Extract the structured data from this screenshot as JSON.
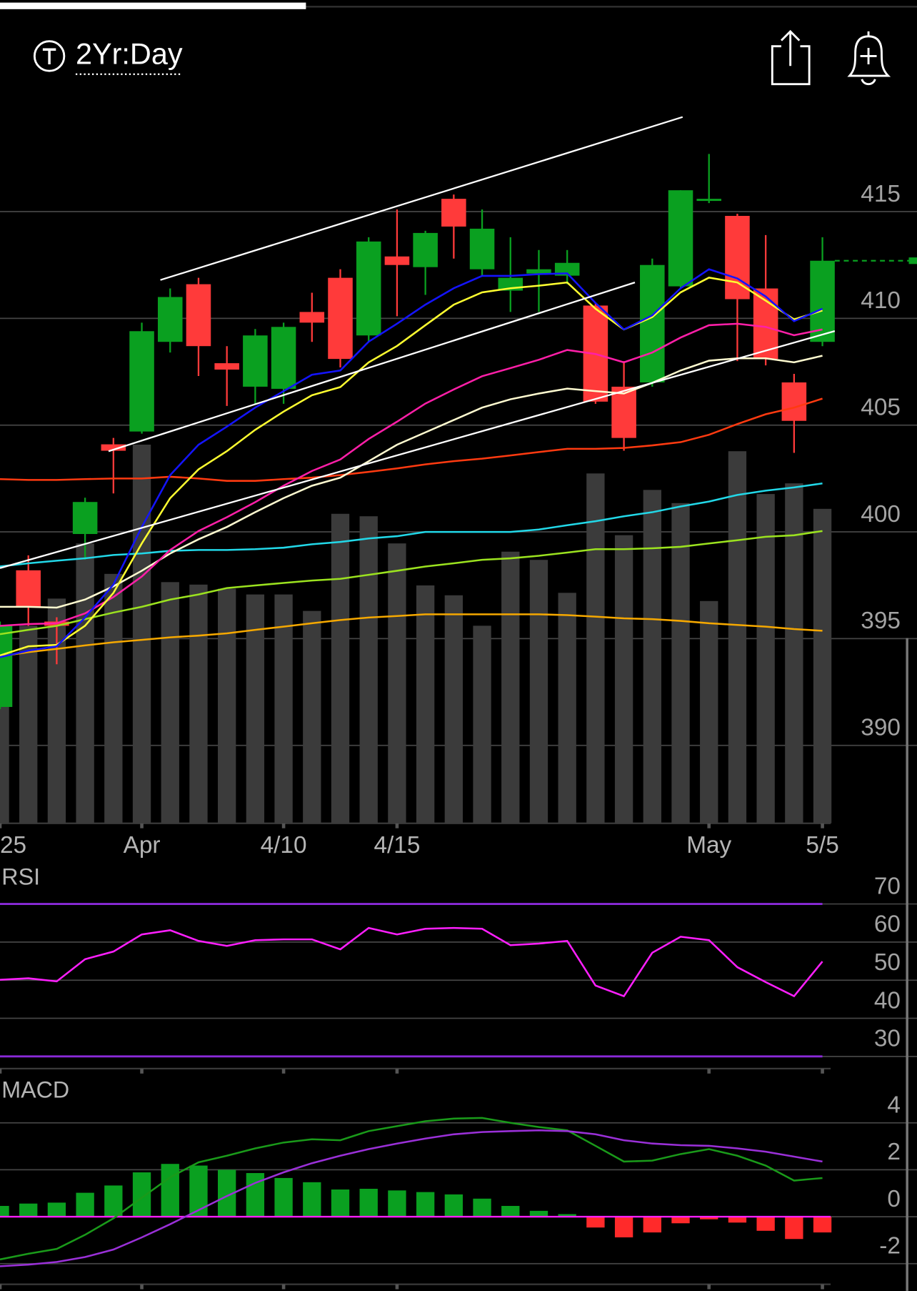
{
  "header": {
    "timeframe": "2Yr:Day"
  },
  "chart_data": [
    {
      "type": "candlestick",
      "categories": [
        "25",
        null,
        null,
        null,
        null,
        "Apr",
        null,
        null,
        null,
        null,
        "4/10",
        null,
        null,
        null,
        "4/15",
        null,
        null,
        null,
        null,
        null,
        null,
        null,
        null,
        null,
        null,
        "May",
        null,
        null,
        null,
        "5/5"
      ],
      "open": [
        391.8,
        398.2,
        395.8,
        399.9,
        404.1,
        404.7,
        408.9,
        411.6,
        407.9,
        406.8,
        406.7,
        410.3,
        411.9,
        409.2,
        412.9,
        412.4,
        415.6,
        412.3,
        411.3,
        412.1,
        412.0,
        410.6,
        406.8,
        407.0,
        411.5,
        415.5,
        414.8,
        411.4,
        407.0,
        408.9
      ],
      "high": [
        395.8,
        398.9,
        396.0,
        401.6,
        404.4,
        409.8,
        411.4,
        411.9,
        408.7,
        409.5,
        409.8,
        411.2,
        412.3,
        413.8,
        415.1,
        414.1,
        415.8,
        415.1,
        413.8,
        413.2,
        413.2,
        410.7,
        408.0,
        412.8,
        416.0,
        417.7,
        414.9,
        413.9,
        407.4,
        413.8
      ],
      "low": [
        391.7,
        395.6,
        393.8,
        398.7,
        401.8,
        404.6,
        408.4,
        407.3,
        405.9,
        406.0,
        406.0,
        408.9,
        407.7,
        408.9,
        410.1,
        411.1,
        412.8,
        412.0,
        410.3,
        410.3,
        411.6,
        406.0,
        403.8,
        406.8,
        411.4,
        415.4,
        408.0,
        407.8,
        403.7,
        408.7
      ],
      "close": [
        395.6,
        396.5,
        395.6,
        401.4,
        403.8,
        409.4,
        411.0,
        408.7,
        407.6,
        409.2,
        409.6,
        409.8,
        408.1,
        413.6,
        412.5,
        414.0,
        414.3,
        414.2,
        411.9,
        412.3,
        412.6,
        406.1,
        404.4,
        412.5,
        416.0,
        415.6,
        410.9,
        408.1,
        405.2,
        412.7
      ],
      "up_color": "#0aa020",
      "down_color": "#ff3a3a",
      "volume": {
        "values": [
          240,
          240,
          273,
          340,
          303,
          460,
          293,
          290,
          285,
          278,
          278,
          258,
          376,
          373,
          340,
          289,
          277,
          240,
          330,
          320,
          280,
          425,
          350,
          405,
          389,
          270,
          452,
          400,
          413,
          382
        ],
        "ylim": [
          0,
          900
        ],
        "color": "#3b3b3b"
      },
      "series": [
        {
          "color": "#f5a800",
          "values": [
            394.17,
            394.37,
            394.52,
            394.68,
            394.83,
            394.94,
            395.06,
            395.14,
            395.25,
            395.41,
            395.56,
            395.72,
            395.87,
            395.99,
            396.06,
            396.14,
            396.14,
            396.14,
            396.14,
            396.14,
            396.1,
            396.03,
            395.95,
            395.91,
            395.83,
            395.72,
            395.64,
            395.56,
            395.45,
            395.37
          ]
        },
        {
          "color": "#9be21f",
          "values": [
            395.21,
            395.41,
            395.6,
            395.91,
            396.22,
            396.49,
            396.83,
            397.07,
            397.37,
            397.49,
            397.61,
            397.72,
            397.8,
            397.99,
            398.18,
            398.38,
            398.53,
            398.69,
            398.76,
            398.88,
            399.03,
            399.19,
            399.19,
            399.23,
            399.3,
            399.46,
            399.61,
            399.77,
            399.84,
            400.04
          ]
        },
        {
          "color": "#22d8e8",
          "values": [
            398.38,
            398.53,
            398.65,
            398.76,
            398.92,
            398.99,
            399.11,
            399.15,
            399.15,
            399.19,
            399.26,
            399.42,
            399.53,
            399.69,
            399.8,
            400.0,
            400.0,
            400.0,
            400.0,
            400.11,
            400.31,
            400.5,
            400.73,
            400.92,
            401.19,
            401.42,
            401.73,
            401.93,
            402.08,
            402.27
          ]
        },
        {
          "color": "#ff3a10",
          "values": [
            402.47,
            402.43,
            402.43,
            402.47,
            402.5,
            402.5,
            402.58,
            402.5,
            402.39,
            402.39,
            402.47,
            402.54,
            402.66,
            402.81,
            402.97,
            403.16,
            403.31,
            403.43,
            403.58,
            403.74,
            403.89,
            403.89,
            403.93,
            404.05,
            404.2,
            404.55,
            405.05,
            405.51,
            405.82,
            406.24
          ]
        },
        {
          "color": "#fffbd0",
          "values": [
            396.49,
            396.49,
            396.45,
            396.83,
            397.45,
            398.18,
            398.99,
            399.65,
            400.23,
            400.92,
            401.58,
            402.16,
            402.54,
            403.31,
            404.08,
            404.66,
            405.24,
            405.82,
            406.21,
            406.48,
            406.71,
            406.59,
            406.48,
            406.98,
            407.56,
            408.02,
            408.13,
            408.13,
            407.94,
            408.25
          ]
        },
        {
          "color": "#ff1fa8",
          "values": [
            395.6,
            395.68,
            395.72,
            396.18,
            396.95,
            397.91,
            399.15,
            400.04,
            400.69,
            401.39,
            402.16,
            402.85,
            403.39,
            404.35,
            405.16,
            406.01,
            406.67,
            407.29,
            407.67,
            408.06,
            408.52,
            408.33,
            407.94,
            408.4,
            409.1,
            409.68,
            409.75,
            409.6,
            409.21,
            409.48
          ]
        },
        {
          "color": "#ffff30",
          "values": [
            394.21,
            394.64,
            394.71,
            395.6,
            397.14,
            399.46,
            401.58,
            402.93,
            403.78,
            404.78,
            405.63,
            406.4,
            406.78,
            407.94,
            408.71,
            409.68,
            410.64,
            411.22,
            411.41,
            411.53,
            411.68,
            410.45,
            409.48,
            410.06,
            411.22,
            411.91,
            411.68,
            410.83,
            409.95,
            410.37
          ]
        },
        {
          "color": "#1414ff",
          "values": [
            394.13,
            394.44,
            394.64,
            395.99,
            397.53,
            400.23,
            402.66,
            404.08,
            404.93,
            405.82,
            406.59,
            407.36,
            407.56,
            408.91,
            409.75,
            410.64,
            411.41,
            411.99,
            411.99,
            412.07,
            412.11,
            410.72,
            409.48,
            410.14,
            411.41,
            412.3,
            411.87,
            411.03,
            409.87,
            410.45
          ]
        }
      ],
      "last_price_color": "#0aa020",
      "ylim": [
        386.35,
        421.05
      ],
      "yticks": [
        415,
        410,
        405,
        400,
        395,
        390
      ],
      "grid": true
    },
    {
      "type": "line",
      "title": "RSI",
      "series": [
        {
          "color": "#ff1fff",
          "values": [
            50.1,
            50.5,
            49.7,
            55.5,
            57.5,
            62.0,
            63.1,
            60.3,
            59.0,
            60.5,
            60.7,
            60.7,
            58.1,
            63.7,
            62.0,
            63.5,
            63.7,
            63.5,
            59.2,
            59.6,
            60.3,
            48.6,
            45.8,
            57.2,
            61.4,
            60.5,
            53.4,
            49.5,
            45.8,
            54.9
          ]
        }
      ],
      "levels": {
        "values": [
          70,
          30
        ],
        "color": "#8a2ad8"
      },
      "ylim": [
        26.8,
        78.2
      ],
      "yticks": [
        70,
        60,
        50,
        40,
        30
      ],
      "grid": true
    },
    {
      "type": "macd",
      "title": "MACD",
      "series": [
        {
          "color": "#1a9a1a",
          "values": [
            -1.82,
            -1.58,
            -1.37,
            -0.77,
            -0.07,
            0.81,
            1.68,
            2.32,
            2.6,
            2.91,
            3.16,
            3.3,
            3.26,
            3.65,
            3.86,
            4.07,
            4.18,
            4.21,
            4.0,
            3.82,
            3.68,
            3.02,
            2.35,
            2.39,
            2.67,
            2.88,
            2.6,
            2.18,
            1.54,
            1.65
          ]
        },
        {
          "color": "#9a30d8",
          "values": [
            -2.11,
            -2.04,
            -1.93,
            -1.72,
            -1.4,
            -0.88,
            -0.32,
            0.28,
            0.88,
            1.44,
            1.89,
            2.28,
            2.6,
            2.88,
            3.12,
            3.33,
            3.51,
            3.61,
            3.65,
            3.68,
            3.65,
            3.51,
            3.26,
            3.12,
            3.05,
            3.02,
            2.91,
            2.77,
            2.56,
            2.35
          ]
        }
      ],
      "histogram": {
        "values": [
          0.46,
          0.56,
          0.6,
          1.02,
          1.33,
          1.89,
          2.25,
          2.18,
          2.0,
          1.86,
          1.65,
          1.47,
          1.16,
          1.19,
          1.12,
          1.05,
          0.95,
          0.77,
          0.46,
          0.25,
          0.11,
          -0.46,
          -0.88,
          -0.67,
          -0.28,
          -0.11,
          -0.25,
          -0.6,
          -0.95,
          -0.67
        ],
        "up_color": "#0aa020",
        "down_color": "#ff2a2a"
      },
      "zero_line_color": "#ff1fff",
      "ylim": [
        -2.88,
        5.89
      ],
      "yticks": [
        4,
        2,
        0,
        -2
      ],
      "grid": true
    }
  ]
}
